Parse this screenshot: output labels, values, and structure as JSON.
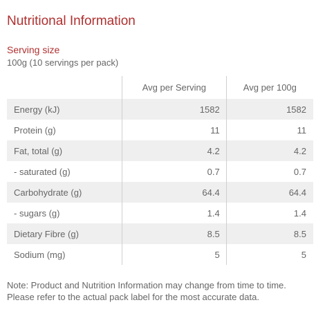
{
  "title": "Nutritional Information",
  "serving": {
    "heading": "Serving size",
    "value": "100g (10 servings per pack)"
  },
  "table": {
    "headers": [
      "",
      "Avg per Serving",
      "Avg per 100g"
    ],
    "rows": [
      {
        "nutrient": "Energy (kJ)",
        "per_serving": "1582",
        "per_100g": "1582"
      },
      {
        "nutrient": "Protein (g)",
        "per_serving": "11",
        "per_100g": "11"
      },
      {
        "nutrient": "Fat, total (g)",
        "per_serving": "4.2",
        "per_100g": "4.2"
      },
      {
        "nutrient": "- saturated (g)",
        "per_serving": "0.7",
        "per_100g": "0.7"
      },
      {
        "nutrient": "Carbohydrate (g)",
        "per_serving": "64.4",
        "per_100g": "64.4"
      },
      {
        "nutrient": "- sugars (g)",
        "per_serving": "1.4",
        "per_100g": "1.4"
      },
      {
        "nutrient": "Dietary Fibre (g)",
        "per_serving": "8.5",
        "per_100g": "8.5"
      },
      {
        "nutrient": "Sodium (mg)",
        "per_serving": "5",
        "per_100g": "5"
      }
    ]
  },
  "note": "Note: Product and Nutrition Information may change from time to time. Please refer to the actual pack label for the most accurate data."
}
